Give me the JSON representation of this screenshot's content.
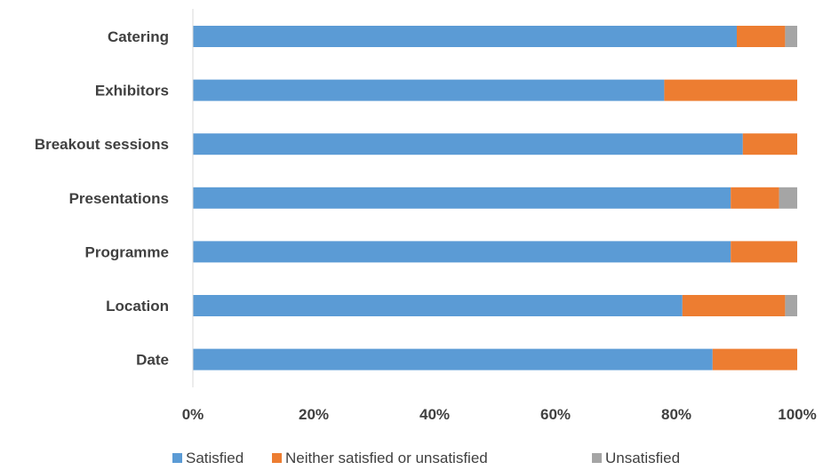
{
  "chart_data": {
    "type": "bar",
    "orientation": "horizontal",
    "stacked": true,
    "categories": [
      "Catering",
      "Exhibitors",
      "Breakout sessions",
      "Presentations",
      "Programme",
      "Location",
      "Date"
    ],
    "series": [
      {
        "name": "Satisfied",
        "values": [
          90,
          78,
          91,
          89,
          89,
          81,
          86
        ],
        "color": "#5B9BD5"
      },
      {
        "name": "Neither satisfied or unsatisfied",
        "values": [
          8,
          22,
          9,
          8,
          11,
          17,
          14
        ],
        "color": "#ED7D31"
      },
      {
        "name": "Unsatisfied",
        "values": [
          2,
          0,
          0,
          3,
          0,
          2,
          0
        ],
        "color": "#A5A5A5"
      }
    ],
    "xlim": [
      0,
      100
    ],
    "x_ticks": [
      "0%",
      "20%",
      "40%",
      "60%",
      "80%",
      "100%"
    ],
    "grid": false,
    "legend_position": "bottom"
  }
}
